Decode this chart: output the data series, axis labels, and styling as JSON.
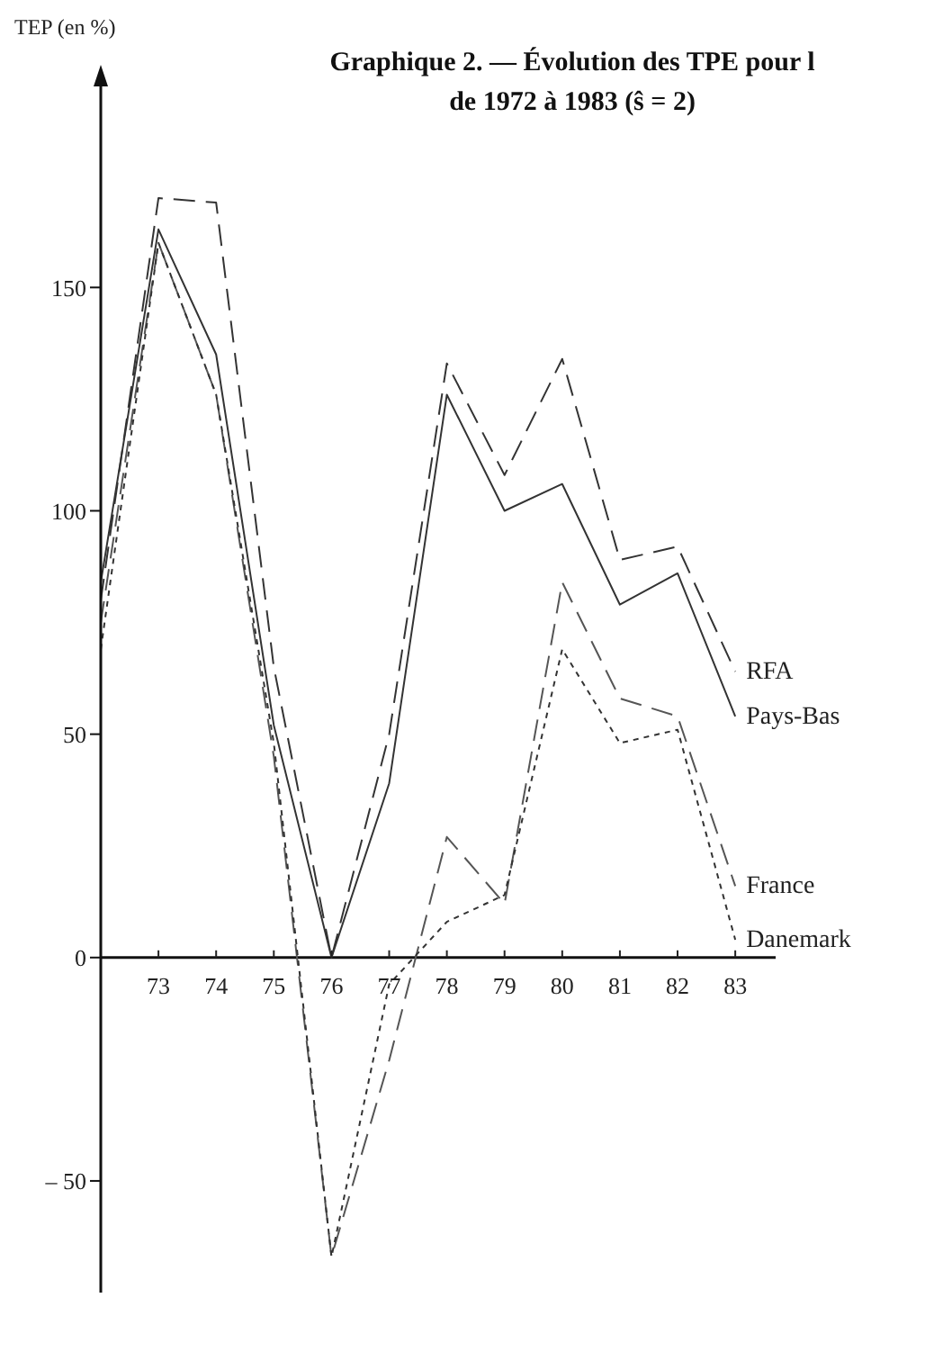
{
  "chart_data": {
    "type": "line",
    "title": "Graphique 2. — Évolution des TPE pour l",
    "subtitle": "de 1972 à 1983 (ŝ = 2)",
    "ylabel": "TEP (en %)",
    "x": [
      72,
      73,
      74,
      75,
      76,
      77,
      78,
      79,
      80,
      81,
      82,
      83
    ],
    "xlim": [
      72,
      83.7
    ],
    "xticks": [
      73,
      74,
      75,
      76,
      77,
      78,
      79,
      80,
      81,
      82,
      83
    ],
    "ylim": [
      -75,
      195
    ],
    "yticks": [
      {
        "value": -50,
        "label": "– 50"
      },
      0,
      50,
      100,
      150
    ],
    "series": [
      {
        "name": "RFA",
        "color": "#333333",
        "line_style": "dashed",
        "values": [
          80,
          170,
          169,
          65,
          0,
          50,
          133,
          108,
          134,
          89,
          92,
          64
        ]
      },
      {
        "name": "Pays-Bas",
        "color": "#333333",
        "line_style": "solid",
        "values": [
          84,
          163,
          135,
          52,
          0,
          39,
          126,
          100,
          106,
          79,
          86,
          54
        ]
      },
      {
        "name": "France",
        "color": "#555555",
        "line_style": "dashed",
        "values": [
          75,
          160,
          126,
          45,
          -67,
          -23,
          27,
          12,
          84,
          58,
          54,
          16
        ]
      },
      {
        "name": "Danemark",
        "color": "#333333",
        "line_style": "dotted",
        "values": [
          69,
          160,
          126,
          48,
          -67,
          -6,
          8,
          14,
          69,
          48,
          51,
          4
        ]
      }
    ],
    "grid": false,
    "marker": "none"
  }
}
